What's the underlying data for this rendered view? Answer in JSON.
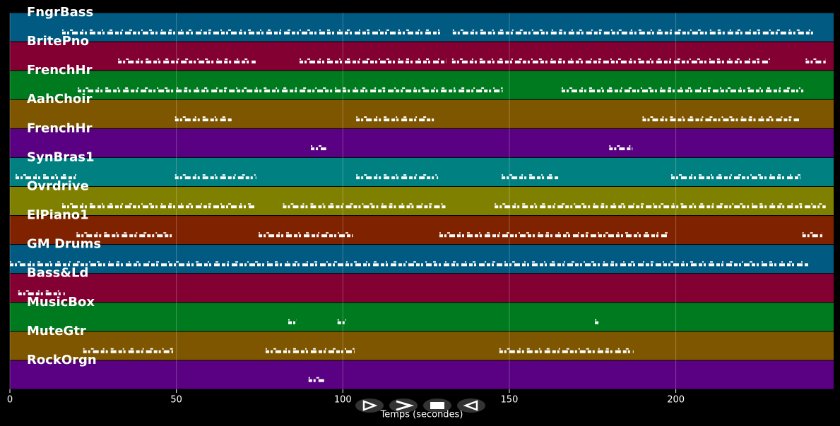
{
  "chart_data": {
    "type": "pianoroll",
    "xlabel": "Temps (secondes)",
    "xlim": [
      0,
      247.4
    ],
    "xticks": [
      0,
      50,
      100,
      150,
      200
    ],
    "grid": true,
    "series": [
      {
        "name": "FngrBass",
        "color": "#005a82",
        "notes": [
          [
            15.7,
            130
          ],
          [
            133,
            241.7
          ]
        ]
      },
      {
        "name": "BritePno",
        "color": "#820032",
        "notes": [
          [
            32.5,
            73.8
          ],
          [
            87,
            131
          ],
          [
            132.8,
            228.3
          ],
          [
            239,
            245
          ]
        ]
      },
      {
        "name": "FrenchHr",
        "color": "#007a1e",
        "notes": [
          [
            20.4,
            148
          ],
          [
            165.7,
            238.3
          ]
        ]
      },
      {
        "name": "AahChoir",
        "color": "#7f5600",
        "notes": [
          [
            49.6,
            67
          ],
          [
            104,
            127.5
          ],
          [
            190,
            237
          ]
        ]
      },
      {
        "name": "FrenchHr",
        "color": "#5a0082",
        "notes": [
          [
            90.4,
            95
          ],
          [
            180,
            187
          ]
        ]
      },
      {
        "name": "SynBras1",
        "color": "#008080",
        "notes": [
          [
            1.7,
            20
          ],
          [
            49.6,
            74
          ],
          [
            104,
            128.6
          ],
          [
            147.7,
            165
          ],
          [
            198.6,
            237.4
          ]
        ]
      },
      {
        "name": "Ovrdrive",
        "color": "#808000",
        "notes": [
          [
            15.7,
            73.8
          ],
          [
            82,
            131
          ],
          [
            145.6,
            245
          ]
        ]
      },
      {
        "name": "ElPiano1",
        "color": "#7f2200",
        "notes": [
          [
            20,
            48.6
          ],
          [
            74.7,
            103
          ],
          [
            129,
            197.5
          ],
          [
            238,
            244
          ]
        ]
      },
      {
        "name": "GM Drums",
        "color": "#005a82",
        "notes": [
          [
            0,
            240
          ]
        ]
      },
      {
        "name": "Bass&Ld",
        "color": "#820032",
        "notes": [
          [
            2.5,
            16.5
          ]
        ]
      },
      {
        "name": "MusicBox",
        "color": "#007a1e",
        "notes": [
          [
            83.6,
            86
          ],
          [
            98.4,
            101
          ],
          [
            175.7,
            177
          ]
        ]
      },
      {
        "name": "MuteGtr",
        "color": "#7f5600",
        "notes": [
          [
            22,
            49
          ],
          [
            76.8,
            103.5
          ],
          [
            147,
            187.3
          ]
        ]
      },
      {
        "name": "RockOrgn",
        "color": "#5a0082",
        "notes": [
          [
            89.7,
            95
          ]
        ]
      }
    ]
  }
}
